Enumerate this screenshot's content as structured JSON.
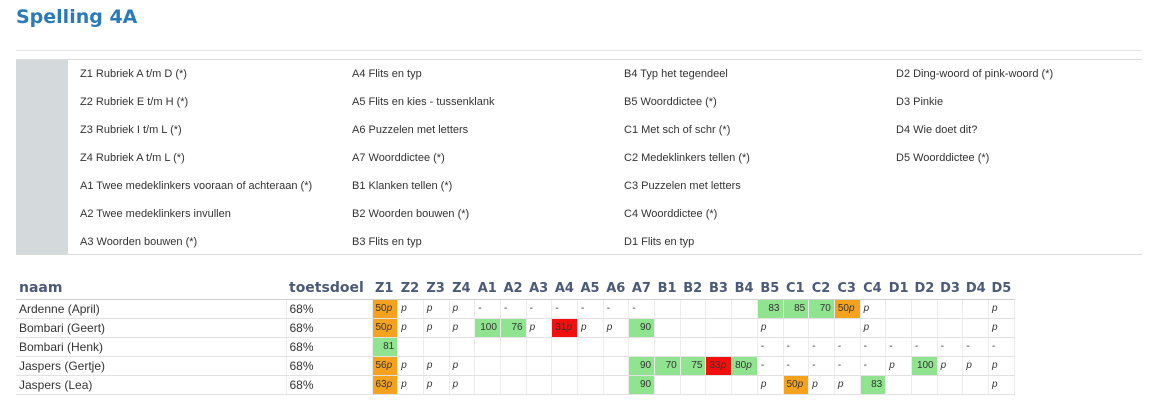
{
  "page": {
    "title": "Spelling 4A"
  },
  "legend": {
    "columns": [
      [
        "Z1 Rubriek A t/m D (*)",
        "Z2 Rubriek E t/m H (*)",
        "Z3 Rubriek I t/m L (*)",
        "Z4 Rubriek A t/m L (*)",
        "A1 Twee medeklinkers vooraan of achteraan (*)",
        "A2 Twee medeklinkers invullen",
        "A3 Woorden bouwen (*)"
      ],
      [
        "A4 Flits en typ",
        "A5 Flits en kies - tussenklank",
        "A6 Puzzelen met letters",
        "A7 Woorddictee (*)",
        "B1 Klanken tellen (*)",
        "B2 Woorden bouwen (*)",
        "B3 Flits en typ"
      ],
      [
        "B4 Typ het tegendeel",
        "B5 Woorddictee (*)",
        "C1 Met sch of schr (*)",
        "C2 Medeklinkers tellen (*)",
        "C3 Puzzelen met letters",
        "C4 Woorddictee (*)",
        "D1 Flits en typ"
      ],
      [
        "D2 Ding-woord of pink-woord (*)",
        "D3 Pinkie",
        "D4 Wie doet dit?",
        "D5 Woorddictee (*)"
      ]
    ]
  },
  "table": {
    "name_header": "naam",
    "goal_header": "toetsdoel",
    "columns": [
      "Z1",
      "Z2",
      "Z3",
      "Z4",
      "A1",
      "A2",
      "A3",
      "A4",
      "A5",
      "A6",
      "A7",
      "B1",
      "B2",
      "B3",
      "B4",
      "B5",
      "C1",
      "C2",
      "C3",
      "C4",
      "D1",
      "D2",
      "D3",
      "D4",
      "D5"
    ],
    "colors": {
      "green": "#90e490",
      "orange": "#f5a31f",
      "red": "#f40e0e"
    },
    "rows": [
      {
        "name": "Ardenne (April)",
        "goal": "68%",
        "cells": [
          {
            "v": "50",
            "p": true,
            "c": "orange"
          },
          {
            "v": "p"
          },
          {
            "v": "p"
          },
          {
            "v": "p"
          },
          {
            "v": "-"
          },
          {
            "v": "-"
          },
          {
            "v": "-"
          },
          {
            "v": "-"
          },
          {
            "v": "-"
          },
          {
            "v": "-"
          },
          {
            "v": "-"
          },
          {
            "v": ""
          },
          {
            "v": ""
          },
          {
            "v": ""
          },
          {
            "v": ""
          },
          {
            "v": "83",
            "c": "green"
          },
          {
            "v": "85",
            "c": "green"
          },
          {
            "v": "70",
            "c": "green"
          },
          {
            "v": "50",
            "p": true,
            "c": "orange"
          },
          {
            "v": "p"
          },
          {
            "v": ""
          },
          {
            "v": ""
          },
          {
            "v": ""
          },
          {
            "v": ""
          },
          {
            "v": "p"
          }
        ]
      },
      {
        "name": "Bombari (Geert)",
        "goal": "68%",
        "cells": [
          {
            "v": "50",
            "p": true,
            "c": "orange"
          },
          {
            "v": "p"
          },
          {
            "v": "p"
          },
          {
            "v": "p"
          },
          {
            "v": "100",
            "c": "green"
          },
          {
            "v": "76",
            "c": "green"
          },
          {
            "v": "p"
          },
          {
            "v": "31",
            "p": true,
            "c": "red"
          },
          {
            "v": "p"
          },
          {
            "v": "p"
          },
          {
            "v": "90",
            "c": "green"
          },
          {
            "v": ""
          },
          {
            "v": ""
          },
          {
            "v": ""
          },
          {
            "v": ""
          },
          {
            "v": "p"
          },
          {
            "v": ""
          },
          {
            "v": ""
          },
          {
            "v": ""
          },
          {
            "v": "p"
          },
          {
            "v": ""
          },
          {
            "v": ""
          },
          {
            "v": ""
          },
          {
            "v": ""
          },
          {
            "v": "p"
          }
        ]
      },
      {
        "name": "Bombari (Henk)",
        "goal": "68%",
        "cells": [
          {
            "v": "81",
            "c": "green"
          },
          {
            "v": ""
          },
          {
            "v": ""
          },
          {
            "v": ""
          },
          {
            "v": ""
          },
          {
            "v": ""
          },
          {
            "v": ""
          },
          {
            "v": ""
          },
          {
            "v": ""
          },
          {
            "v": ""
          },
          {
            "v": ""
          },
          {
            "v": ""
          },
          {
            "v": ""
          },
          {
            "v": ""
          },
          {
            "v": ""
          },
          {
            "v": "-"
          },
          {
            "v": "-"
          },
          {
            "v": "-"
          },
          {
            "v": "-"
          },
          {
            "v": "-"
          },
          {
            "v": "-"
          },
          {
            "v": "-"
          },
          {
            "v": "-"
          },
          {
            "v": "-"
          },
          {
            "v": "-"
          }
        ]
      },
      {
        "name": "Jaspers (Gertje)",
        "goal": "68%",
        "cells": [
          {
            "v": "56",
            "p": true,
            "c": "orange"
          },
          {
            "v": "p"
          },
          {
            "v": "p"
          },
          {
            "v": "p"
          },
          {
            "v": ""
          },
          {
            "v": ""
          },
          {
            "v": ""
          },
          {
            "v": ""
          },
          {
            "v": ""
          },
          {
            "v": ""
          },
          {
            "v": "90",
            "c": "green"
          },
          {
            "v": "70",
            "c": "green"
          },
          {
            "v": "75",
            "c": "green"
          },
          {
            "v": "33",
            "p": true,
            "c": "red"
          },
          {
            "v": "80",
            "p": true,
            "c": "green"
          },
          {
            "v": "-"
          },
          {
            "v": "-"
          },
          {
            "v": "-"
          },
          {
            "v": "-"
          },
          {
            "v": "-"
          },
          {
            "v": "p"
          },
          {
            "v": "100",
            "c": "green"
          },
          {
            "v": "p"
          },
          {
            "v": "p"
          },
          {
            "v": "p"
          }
        ]
      },
      {
        "name": "Jaspers (Lea)",
        "goal": "68%",
        "cells": [
          {
            "v": "63",
            "p": true,
            "c": "orange"
          },
          {
            "v": "p"
          },
          {
            "v": "p"
          },
          {
            "v": "p"
          },
          {
            "v": ""
          },
          {
            "v": ""
          },
          {
            "v": ""
          },
          {
            "v": ""
          },
          {
            "v": ""
          },
          {
            "v": ""
          },
          {
            "v": "90",
            "c": "green"
          },
          {
            "v": ""
          },
          {
            "v": ""
          },
          {
            "v": ""
          },
          {
            "v": ""
          },
          {
            "v": "p"
          },
          {
            "v": "50",
            "p": true,
            "c": "orange"
          },
          {
            "v": "p"
          },
          {
            "v": "p"
          },
          {
            "v": "83",
            "c": "green"
          },
          {
            "v": ""
          },
          {
            "v": ""
          },
          {
            "v": ""
          },
          {
            "v": ""
          },
          {
            "v": "p"
          }
        ]
      }
    ]
  }
}
